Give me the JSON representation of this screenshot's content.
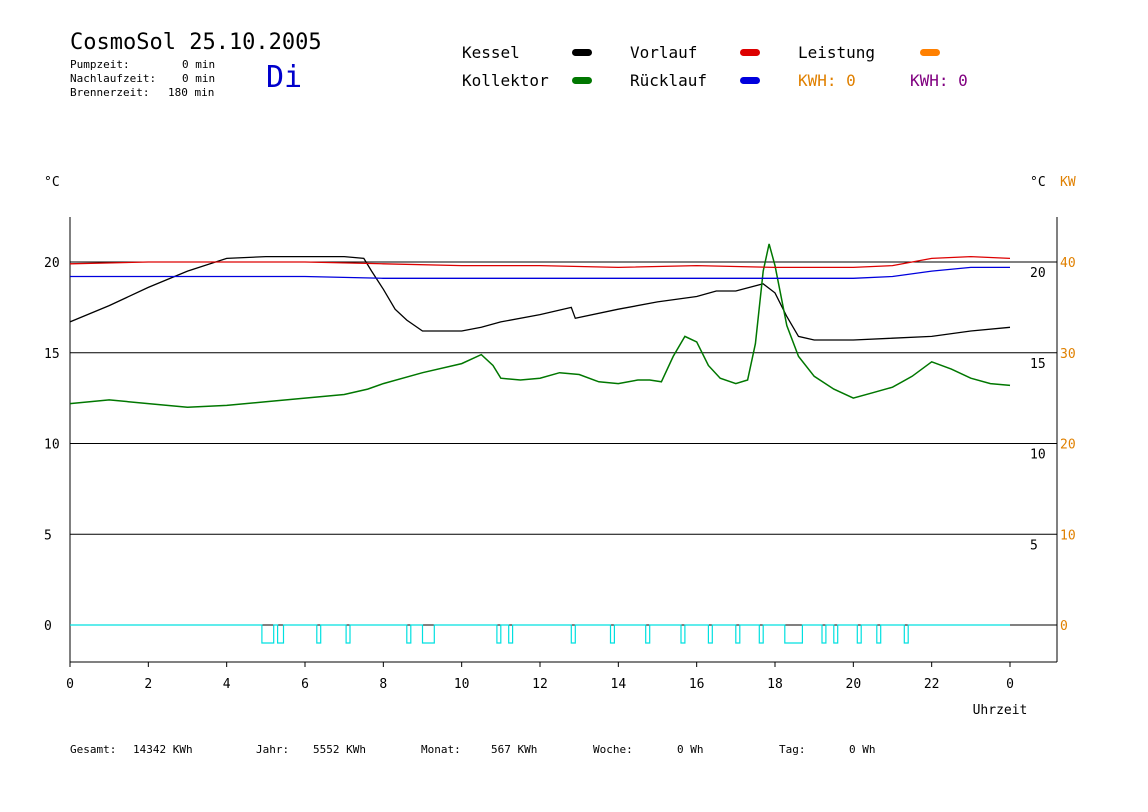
{
  "header": {
    "title": "CosmoSol 25.10.2005",
    "pump_label": "Pumpzeit:",
    "pump_value": "0 min",
    "after_label": "Nachlaufzeit:",
    "after_value": "0 min",
    "burner_label": "Brennerzeit:",
    "burner_value": "180 min",
    "weekday": "Di"
  },
  "legend": {
    "kessel": "Kessel",
    "kollektor": "Kollektor",
    "vorlauf": "Vorlauf",
    "ruecklauf": "Rücklauf",
    "leistung": "Leistung",
    "kwh1": "KWH: 0",
    "kwh2": "KWH: 0"
  },
  "footer": {
    "gesamt_label": "Gesamt:",
    "gesamt_value": "14342 KWh",
    "jahr_label": "Jahr:",
    "jahr_value": "5552 KWh",
    "monat_label": "Monat:",
    "monat_value": "567 KWh",
    "woche_label": "Woche:",
    "woche_value": "0 Wh",
    "tag_label": "Tag:",
    "tag_value": "0 Wh"
  },
  "colors": {
    "kessel": "#000000",
    "kollektor": "#007700",
    "vorlauf": "#dd0000",
    "ruecklauf": "#0000dd",
    "leistung": "#ff8000",
    "kwh2": "#800080",
    "pump": "#00e0e0"
  },
  "chart_data": {
    "type": "line",
    "xlabel": "Uhrzeit",
    "left_unit": "°C",
    "right_unit_c": "°C",
    "right_unit_kw": "KW",
    "xlim": [
      0,
      24
    ],
    "ylim": [
      -2,
      24
    ],
    "x_ticks": [
      "0",
      "2",
      "4",
      "6",
      "8",
      "10",
      "12",
      "14",
      "16",
      "18",
      "20",
      "22",
      "0"
    ],
    "y_ticks_left": [
      "20",
      "15",
      "10",
      "5",
      "0"
    ],
    "y_ticks_right_c": [
      "20",
      "15",
      "10",
      "5"
    ],
    "y_ticks_right_kw": [
      "40",
      "30",
      "20",
      "10",
      "0"
    ],
    "grid": "horizontal",
    "series": [
      {
        "name": "Kessel",
        "color": "#000000",
        "points": [
          [
            0,
            16.7
          ],
          [
            1,
            17.6
          ],
          [
            2,
            18.6
          ],
          [
            3,
            19.5
          ],
          [
            4,
            20.2
          ],
          [
            5,
            20.3
          ],
          [
            6,
            20.3
          ],
          [
            7,
            20.3
          ],
          [
            7.5,
            20.2
          ],
          [
            7.7,
            19.5
          ],
          [
            8,
            18.5
          ],
          [
            8.3,
            17.4
          ],
          [
            8.6,
            16.8
          ],
          [
            9,
            16.2
          ],
          [
            10,
            16.2
          ],
          [
            10.5,
            16.4
          ],
          [
            11,
            16.7
          ],
          [
            12,
            17.1
          ],
          [
            12.8,
            17.5
          ],
          [
            12.9,
            16.9
          ],
          [
            14,
            17.4
          ],
          [
            15,
            17.8
          ],
          [
            16,
            18.1
          ],
          [
            16.5,
            18.4
          ],
          [
            17,
            18.4
          ],
          [
            17.7,
            18.8
          ],
          [
            18,
            18.3
          ],
          [
            18.3,
            17.0
          ],
          [
            18.6,
            15.9
          ],
          [
            19,
            15.7
          ],
          [
            20,
            15.7
          ],
          [
            21,
            15.8
          ],
          [
            22,
            15.9
          ],
          [
            23,
            16.2
          ],
          [
            24,
            16.4
          ]
        ]
      },
      {
        "name": "Kollektor",
        "color": "#007700",
        "points": [
          [
            0,
            12.2
          ],
          [
            1,
            12.4
          ],
          [
            2,
            12.2
          ],
          [
            3,
            12.0
          ],
          [
            4,
            12.1
          ],
          [
            5,
            12.3
          ],
          [
            6,
            12.5
          ],
          [
            7,
            12.7
          ],
          [
            7.6,
            13.0
          ],
          [
            8,
            13.3
          ],
          [
            9,
            13.9
          ],
          [
            10,
            14.4
          ],
          [
            10.5,
            14.9
          ],
          [
            10.8,
            14.3
          ],
          [
            11,
            13.6
          ],
          [
            11.5,
            13.5
          ],
          [
            12,
            13.6
          ],
          [
            12.5,
            13.9
          ],
          [
            13,
            13.8
          ],
          [
            13.5,
            13.4
          ],
          [
            14,
            13.3
          ],
          [
            14.5,
            13.5
          ],
          [
            14.8,
            13.5
          ],
          [
            15.1,
            13.4
          ],
          [
            15.4,
            14.8
          ],
          [
            15.7,
            15.9
          ],
          [
            16,
            15.6
          ],
          [
            16.3,
            14.3
          ],
          [
            16.6,
            13.6
          ],
          [
            17,
            13.3
          ],
          [
            17.3,
            13.5
          ],
          [
            17.5,
            15.5
          ],
          [
            17.7,
            19.5
          ],
          [
            17.85,
            21.0
          ],
          [
            18,
            19.8
          ],
          [
            18.3,
            16.5
          ],
          [
            18.6,
            14.8
          ],
          [
            19,
            13.7
          ],
          [
            19.5,
            13.0
          ],
          [
            20,
            12.5
          ],
          [
            20.5,
            12.8
          ],
          [
            21,
            13.1
          ],
          [
            21.5,
            13.7
          ],
          [
            22,
            14.5
          ],
          [
            22.5,
            14.1
          ],
          [
            23,
            13.6
          ],
          [
            23.5,
            13.3
          ],
          [
            24,
            13.2
          ]
        ]
      },
      {
        "name": "Vorlauf",
        "color": "#dd0000",
        "points": [
          [
            0,
            19.9
          ],
          [
            2,
            20.0
          ],
          [
            4,
            20.0
          ],
          [
            6,
            20.0
          ],
          [
            8,
            19.9
          ],
          [
            10,
            19.8
          ],
          [
            12,
            19.8
          ],
          [
            14,
            19.7
          ],
          [
            16,
            19.8
          ],
          [
            18,
            19.7
          ],
          [
            20,
            19.7
          ],
          [
            21,
            19.8
          ],
          [
            22,
            20.2
          ],
          [
            23,
            20.3
          ],
          [
            24,
            20.2
          ]
        ]
      },
      {
        "name": "Rücklauf",
        "color": "#0000dd",
        "points": [
          [
            0,
            19.2
          ],
          [
            2,
            19.2
          ],
          [
            4,
            19.2
          ],
          [
            6,
            19.2
          ],
          [
            8,
            19.1
          ],
          [
            10,
            19.1
          ],
          [
            12,
            19.1
          ],
          [
            14,
            19.1
          ],
          [
            16,
            19.1
          ],
          [
            18,
            19.1
          ],
          [
            20,
            19.1
          ],
          [
            21,
            19.2
          ],
          [
            22,
            19.5
          ],
          [
            23,
            19.7
          ],
          [
            24,
            19.7
          ]
        ]
      },
      {
        "name": "Pumpe",
        "color": "#00e0e0",
        "pulses": [
          [
            4.9,
            5.2
          ],
          [
            5.3,
            5.45
          ],
          [
            6.3,
            6.4
          ],
          [
            7.05,
            7.15
          ],
          [
            8.6,
            8.7
          ],
          [
            9.0,
            9.3
          ],
          [
            10.9,
            11.0
          ],
          [
            11.2,
            11.3
          ],
          [
            12.8,
            12.9
          ],
          [
            13.8,
            13.9
          ],
          [
            14.7,
            14.8
          ],
          [
            15.6,
            15.7
          ],
          [
            16.3,
            16.4
          ],
          [
            17.0,
            17.1
          ],
          [
            17.6,
            17.7
          ],
          [
            18.25,
            18.7
          ],
          [
            19.2,
            19.3
          ],
          [
            19.5,
            19.6
          ],
          [
            20.1,
            20.2
          ],
          [
            20.6,
            20.7
          ],
          [
            21.3,
            21.4
          ]
        ]
      }
    ]
  }
}
